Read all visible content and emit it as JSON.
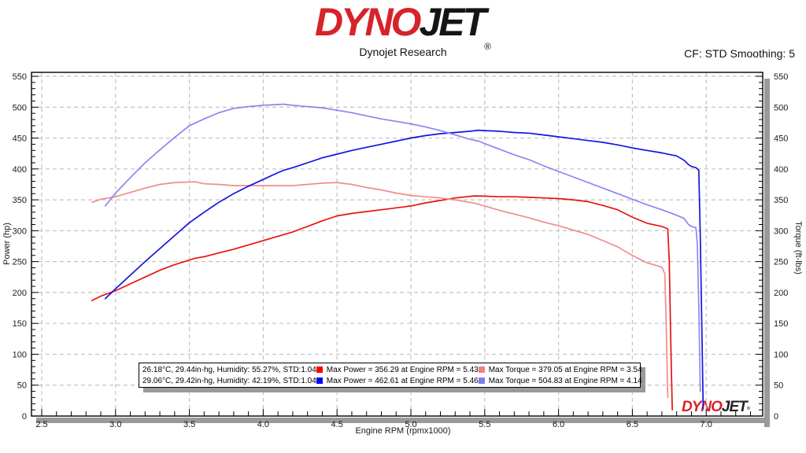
{
  "header": {
    "logo_part1": "DYNO",
    "logo_part2": "JET",
    "registered_mark": "®",
    "subtitle": "Dynojet Research",
    "cf_label": "CF: STD Smoothing: 5"
  },
  "watermark": {
    "part1": "DYNO",
    "part2": "JET",
    "mark": "®"
  },
  "legend": {
    "rows": [
      {
        "env": "26.18°C, 29.44in-hg, Humidity: 55.27%, STD:1.04",
        "power_color": "#ff0000",
        "power_label": "Max Power = 356.29 at Engine RPM = 5.43",
        "torque_color": "#f47c7c",
        "torque_label": "Max Torque = 379.05 at Engine RPM = 3.54"
      },
      {
        "env": "29.06°C, 29.42in-hg, Humidity: 42.19%, STD:1.04",
        "power_color": "#0000ff",
        "power_label": "Max Power = 462.61 at Engine RPM = 5.46",
        "torque_color": "#7c7cf4",
        "torque_label": "Max Torque = 504.83 at Engine RPM = 4.14"
      }
    ]
  },
  "chart_data": {
    "type": "line",
    "xlabel": "Engine RPM (rpmx1000)",
    "ylabel_left": "Power (hp)",
    "ylabel_right": "Torque (ft-lbs)",
    "grid": true,
    "grid_style": "dashed",
    "legend_position": "bottom-left-inside",
    "axes": {
      "x_min": 2.5,
      "x_max": 7.38,
      "x_major_step": 0.5,
      "x_minor_step": 0.1,
      "x_label_max": 7.0,
      "y_min": 0,
      "y_max": 550,
      "y_major_step": 50,
      "y_minor_step": 10
    },
    "series": [
      {
        "name": "run1_power",
        "units": "hp",
        "axis": "left",
        "color": "#ea1010",
        "max_label": "Max Power = 356.29 at Engine RPM = 5.43",
        "points": [
          [
            2.84,
            187
          ],
          [
            2.9,
            194
          ],
          [
            3.0,
            203
          ],
          [
            3.1,
            214
          ],
          [
            3.2,
            225
          ],
          [
            3.3,
            236
          ],
          [
            3.4,
            245
          ],
          [
            3.54,
            255.5
          ],
          [
            3.6,
            258
          ],
          [
            3.7,
            264
          ],
          [
            3.8,
            270
          ],
          [
            3.9,
            277
          ],
          [
            4.0,
            284
          ],
          [
            4.1,
            291
          ],
          [
            4.2,
            298
          ],
          [
            4.3,
            307
          ],
          [
            4.4,
            316
          ],
          [
            4.5,
            324
          ],
          [
            4.6,
            328
          ],
          [
            4.7,
            331
          ],
          [
            4.8,
            334
          ],
          [
            4.9,
            337
          ],
          [
            5.0,
            340
          ],
          [
            5.1,
            345
          ],
          [
            5.2,
            349
          ],
          [
            5.3,
            353
          ],
          [
            5.43,
            356.3
          ],
          [
            5.5,
            356
          ],
          [
            5.6,
            355
          ],
          [
            5.7,
            355
          ],
          [
            5.8,
            354
          ],
          [
            5.9,
            353
          ],
          [
            6.0,
            352
          ],
          [
            6.1,
            350
          ],
          [
            6.2,
            347
          ],
          [
            6.3,
            341
          ],
          [
            6.4,
            334
          ],
          [
            6.5,
            322
          ],
          [
            6.6,
            312
          ],
          [
            6.7,
            307
          ],
          [
            6.74,
            303
          ],
          [
            6.75,
            250
          ],
          [
            6.76,
            120
          ],
          [
            6.77,
            10
          ]
        ]
      },
      {
        "name": "run1_torque",
        "units": "ft-lbs",
        "axis": "right",
        "color": "#f28c8c",
        "max_label": "Max Torque = 379.05 at Engine RPM = 3.54",
        "points": [
          [
            2.84,
            346
          ],
          [
            2.9,
            351
          ],
          [
            3.0,
            355
          ],
          [
            3.1,
            362
          ],
          [
            3.2,
            369
          ],
          [
            3.3,
            375
          ],
          [
            3.4,
            378
          ],
          [
            3.54,
            379.1
          ],
          [
            3.6,
            376
          ],
          [
            3.7,
            375
          ],
          [
            3.8,
            373
          ],
          [
            3.9,
            373
          ],
          [
            4.0,
            373
          ],
          [
            4.1,
            373
          ],
          [
            4.2,
            373
          ],
          [
            4.3,
            375
          ],
          [
            4.4,
            377
          ],
          [
            4.5,
            378
          ],
          [
            4.6,
            375
          ],
          [
            4.7,
            370
          ],
          [
            4.8,
            366
          ],
          [
            4.9,
            361
          ],
          [
            5.0,
            357
          ],
          [
            5.1,
            355
          ],
          [
            5.2,
            353
          ],
          [
            5.3,
            350
          ],
          [
            5.43,
            344.6
          ],
          [
            5.5,
            340
          ],
          [
            5.6,
            333
          ],
          [
            5.7,
            327
          ],
          [
            5.8,
            321
          ],
          [
            5.9,
            314
          ],
          [
            6.0,
            308
          ],
          [
            6.1,
            301
          ],
          [
            6.2,
            294
          ],
          [
            6.3,
            284
          ],
          [
            6.4,
            274
          ],
          [
            6.5,
            260
          ],
          [
            6.6,
            248
          ],
          [
            6.7,
            241
          ],
          [
            6.72,
            230
          ],
          [
            6.73,
            140
          ],
          [
            6.74,
            30
          ]
        ]
      },
      {
        "name": "run2_power",
        "units": "hp",
        "axis": "left",
        "color": "#1414e0",
        "max_label": "Max Power = 462.61 at Engine RPM = 5.46",
        "points": [
          [
            2.93,
            190
          ],
          [
            3.0,
            206
          ],
          [
            3.1,
            228
          ],
          [
            3.2,
            250
          ],
          [
            3.3,
            271
          ],
          [
            3.4,
            292
          ],
          [
            3.5,
            313
          ],
          [
            3.6,
            330
          ],
          [
            3.7,
            346
          ],
          [
            3.8,
            360
          ],
          [
            3.9,
            372
          ],
          [
            4.0,
            383
          ],
          [
            4.1,
            394
          ],
          [
            4.14,
            398
          ],
          [
            4.2,
            402
          ],
          [
            4.3,
            410
          ],
          [
            4.4,
            418
          ],
          [
            4.5,
            424
          ],
          [
            4.6,
            430
          ],
          [
            4.7,
            435
          ],
          [
            4.8,
            440
          ],
          [
            4.9,
            445
          ],
          [
            5.0,
            450
          ],
          [
            5.1,
            454
          ],
          [
            5.2,
            457
          ],
          [
            5.3,
            459
          ],
          [
            5.4,
            461
          ],
          [
            5.46,
            462.6
          ],
          [
            5.5,
            462
          ],
          [
            5.6,
            461
          ],
          [
            5.7,
            459
          ],
          [
            5.8,
            458
          ],
          [
            5.9,
            455
          ],
          [
            6.0,
            452
          ],
          [
            6.1,
            449
          ],
          [
            6.2,
            446
          ],
          [
            6.3,
            443
          ],
          [
            6.4,
            439
          ],
          [
            6.5,
            434
          ],
          [
            6.6,
            430
          ],
          [
            6.7,
            426
          ],
          [
            6.8,
            421
          ],
          [
            6.85,
            414
          ],
          [
            6.88,
            407
          ],
          [
            6.9,
            404
          ],
          [
            6.93,
            402
          ],
          [
            6.95,
            398
          ],
          [
            6.96,
            290
          ],
          [
            6.97,
            150
          ],
          [
            6.98,
            12
          ]
        ]
      },
      {
        "name": "run2_torque",
        "units": "ft-lbs",
        "axis": "right",
        "color": "#8888f0",
        "max_label": "Max Torque = 504.83 at Engine RPM = 4.14",
        "points": [
          [
            2.93,
            340
          ],
          [
            3.0,
            361
          ],
          [
            3.1,
            386
          ],
          [
            3.2,
            410
          ],
          [
            3.3,
            431
          ],
          [
            3.4,
            451
          ],
          [
            3.5,
            470
          ],
          [
            3.6,
            481
          ],
          [
            3.7,
            491
          ],
          [
            3.8,
            498
          ],
          [
            3.9,
            501
          ],
          [
            4.0,
            503
          ],
          [
            4.14,
            504.8
          ],
          [
            4.2,
            503
          ],
          [
            4.3,
            501
          ],
          [
            4.4,
            499
          ],
          [
            4.5,
            495
          ],
          [
            4.6,
            491
          ],
          [
            4.7,
            486
          ],
          [
            4.8,
            481
          ],
          [
            4.9,
            477
          ],
          [
            5.0,
            473
          ],
          [
            5.1,
            468
          ],
          [
            5.2,
            462
          ],
          [
            5.3,
            455
          ],
          [
            5.4,
            448
          ],
          [
            5.46,
            445
          ],
          [
            5.5,
            441
          ],
          [
            5.6,
            432
          ],
          [
            5.7,
            423
          ],
          [
            5.8,
            415
          ],
          [
            5.9,
            405
          ],
          [
            6.0,
            396
          ],
          [
            6.1,
            387
          ],
          [
            6.2,
            378
          ],
          [
            6.3,
            369
          ],
          [
            6.4,
            360
          ],
          [
            6.5,
            351
          ],
          [
            6.6,
            342
          ],
          [
            6.7,
            334
          ],
          [
            6.8,
            325
          ],
          [
            6.85,
            320
          ],
          [
            6.88,
            310
          ],
          [
            6.9,
            307
          ],
          [
            6.93,
            305
          ],
          [
            6.94,
            280
          ],
          [
            6.95,
            180
          ],
          [
            6.96,
            40
          ]
        ]
      }
    ]
  },
  "style_colors": {
    "grid": "#c2c2c2",
    "axis": "#000000",
    "tick_label": "#1a1a1a",
    "shadow": "#9a9a9a",
    "logo_red": "#d6232b",
    "logo_black": "#151515"
  }
}
